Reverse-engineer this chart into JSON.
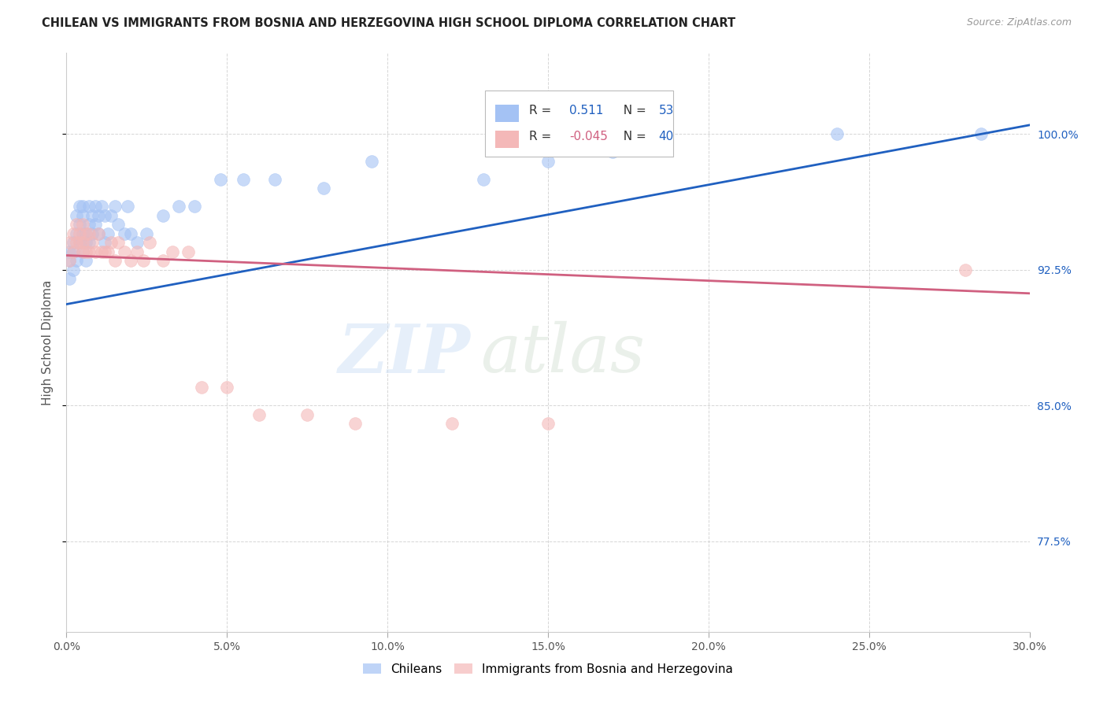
{
  "title": "CHILEAN VS IMMIGRANTS FROM BOSNIA AND HERZEGOVINA HIGH SCHOOL DIPLOMA CORRELATION CHART",
  "source": "Source: ZipAtlas.com",
  "ylabel": "High School Diploma",
  "ytick_labels": [
    "100.0%",
    "92.5%",
    "85.0%",
    "77.5%"
  ],
  "ytick_values": [
    1.0,
    0.925,
    0.85,
    0.775
  ],
  "xtick_labels": [
    "0.0%",
    "5.0%",
    "10.0%",
    "15.0%",
    "20.0%",
    "25.0%",
    "30.0%"
  ],
  "xtick_values": [
    0.0,
    0.05,
    0.1,
    0.15,
    0.2,
    0.25,
    0.3
  ],
  "xmin": 0.0,
  "xmax": 0.3,
  "ymin": 0.725,
  "ymax": 1.045,
  "chilean_color": "#a4c2f4",
  "bosnian_color": "#f4b8b8",
  "trend_blue": "#2060c0",
  "trend_pink": "#d06080",
  "chileans_scatter_x": [
    0.001,
    0.001,
    0.001,
    0.002,
    0.002,
    0.002,
    0.003,
    0.003,
    0.003,
    0.004,
    0.004,
    0.004,
    0.005,
    0.005,
    0.005,
    0.005,
    0.006,
    0.006,
    0.006,
    0.007,
    0.007,
    0.007,
    0.008,
    0.008,
    0.009,
    0.009,
    0.01,
    0.01,
    0.011,
    0.012,
    0.012,
    0.013,
    0.014,
    0.015,
    0.016,
    0.018,
    0.019,
    0.02,
    0.022,
    0.025,
    0.03,
    0.035,
    0.04,
    0.048,
    0.055,
    0.065,
    0.08,
    0.095,
    0.13,
    0.15,
    0.17,
    0.24,
    0.285
  ],
  "chileans_scatter_y": [
    0.93,
    0.935,
    0.92,
    0.94,
    0.935,
    0.925,
    0.955,
    0.945,
    0.93,
    0.95,
    0.96,
    0.94,
    0.955,
    0.945,
    0.935,
    0.96,
    0.945,
    0.94,
    0.93,
    0.95,
    0.96,
    0.94,
    0.955,
    0.945,
    0.95,
    0.96,
    0.955,
    0.945,
    0.96,
    0.955,
    0.94,
    0.945,
    0.955,
    0.96,
    0.95,
    0.945,
    0.96,
    0.945,
    0.94,
    0.945,
    0.955,
    0.96,
    0.96,
    0.975,
    0.975,
    0.975,
    0.97,
    0.985,
    0.975,
    0.985,
    0.99,
    1.0,
    1.0
  ],
  "bosnian_scatter_x": [
    0.001,
    0.001,
    0.002,
    0.002,
    0.003,
    0.003,
    0.004,
    0.004,
    0.005,
    0.005,
    0.005,
    0.006,
    0.006,
    0.007,
    0.007,
    0.008,
    0.009,
    0.01,
    0.011,
    0.012,
    0.013,
    0.014,
    0.015,
    0.016,
    0.018,
    0.02,
    0.022,
    0.024,
    0.026,
    0.03,
    0.033,
    0.038,
    0.042,
    0.05,
    0.06,
    0.075,
    0.09,
    0.12,
    0.15,
    0.28
  ],
  "bosnian_scatter_y": [
    0.94,
    0.93,
    0.945,
    0.935,
    0.95,
    0.94,
    0.94,
    0.945,
    0.95,
    0.94,
    0.935,
    0.945,
    0.935,
    0.945,
    0.935,
    0.94,
    0.935,
    0.945,
    0.935,
    0.935,
    0.935,
    0.94,
    0.93,
    0.94,
    0.935,
    0.93,
    0.935,
    0.93,
    0.94,
    0.93,
    0.935,
    0.935,
    0.86,
    0.86,
    0.845,
    0.845,
    0.84,
    0.84,
    0.84,
    0.925
  ],
  "legend_blue_label": "R =   0.511   N = 53",
  "legend_pink_label": "R = -0.045   N = 40",
  "legend_r1_value": "0.511",
  "legend_r2_value": "-0.045",
  "legend_n1": "53",
  "legend_n2": "40"
}
